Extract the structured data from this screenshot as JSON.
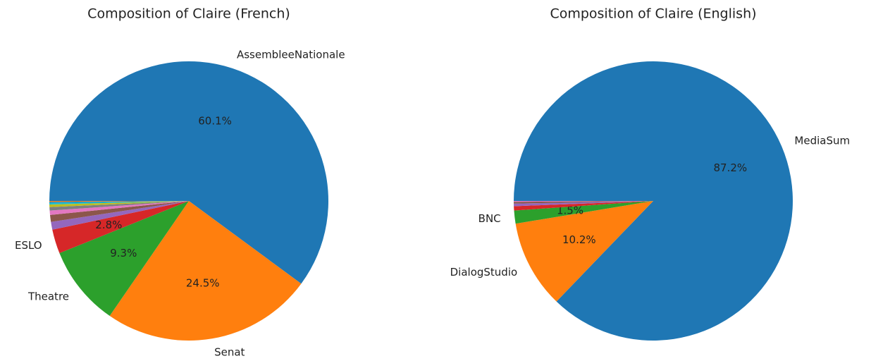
{
  "chart_data": [
    {
      "type": "pie",
      "title": "Composition of Claire (French)",
      "categories": [
        "AssembleeNationale",
        "Senat",
        "Theatre",
        "ESLO",
        null,
        null,
        null,
        null,
        null,
        null,
        null,
        null
      ],
      "values": [
        60.1,
        24.5,
        9.3,
        2.8,
        0.9,
        0.8,
        0.5,
        0.4,
        0.3,
        0.2,
        0.1,
        0.1
      ],
      "value_labels": [
        "60.1%",
        "24.5%",
        "9.3%",
        "2.8%",
        null,
        null,
        null,
        null,
        null,
        null,
        null,
        null
      ],
      "colors": [
        "#1f77b4",
        "#ff7f0e",
        "#2ca02c",
        "#d62728",
        "#9467bd",
        "#8c564b",
        "#e377c2",
        "#7f7f7f",
        "#bcbd22",
        "#17becf",
        "#1f77b4",
        "#ff7f0e"
      ]
    },
    {
      "type": "pie",
      "title": "Composition of Claire (English)",
      "categories": [
        "MediaSum",
        "DialogStudio",
        "BNC",
        null,
        null,
        null,
        null
      ],
      "values": [
        87.2,
        10.2,
        1.5,
        0.5,
        0.3,
        0.2,
        0.1
      ],
      "value_labels": [
        "87.2%",
        "10.2%",
        "1.5%",
        null,
        null,
        null,
        null
      ],
      "colors": [
        "#1f77b4",
        "#ff7f0e",
        "#2ca02c",
        "#d62728",
        "#9467bd",
        "#8c564b",
        "#e377c2"
      ]
    }
  ]
}
